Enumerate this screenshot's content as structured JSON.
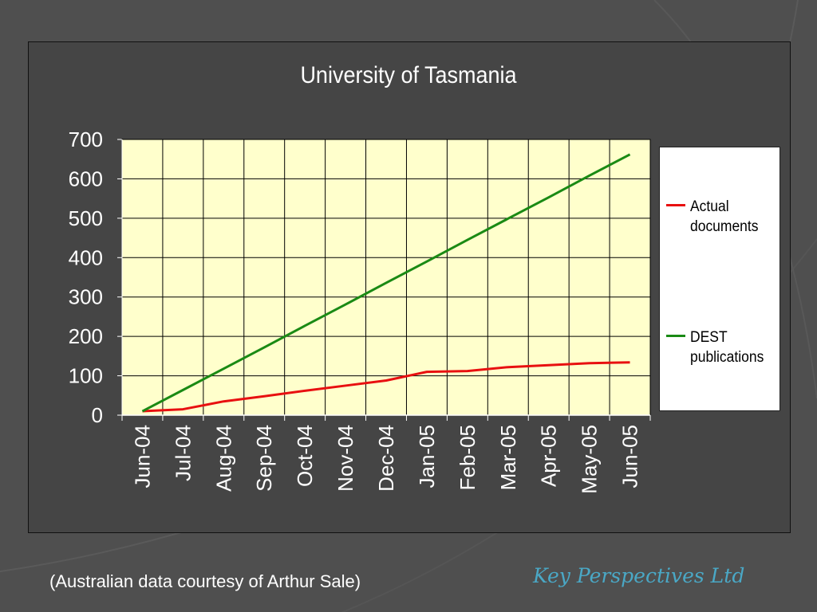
{
  "caption": "(Australian data courtesy of Arthur Sale)",
  "brand": "Key Perspectives Ltd",
  "colors": {
    "plot_bg": "#ffffcc",
    "frame_bg": "#454545",
    "slide_bg": "#4a4a4a",
    "actual": "#e81010",
    "dest": "#1a8a14",
    "brand": "#4aa8c6"
  },
  "chart_data": {
    "type": "line",
    "title": "University of Tasmania",
    "categories": [
      "Jun-04",
      "Jul-04",
      "Aug-04",
      "Sep-04",
      "Oct-04",
      "Nov-04",
      "Dec-04",
      "Jan-05",
      "Feb-05",
      "Mar-05",
      "Apr-05",
      "May-05",
      "Jun-05"
    ],
    "y_ticks": [
      "0",
      "100",
      "200",
      "300",
      "400",
      "500",
      "600",
      "700"
    ],
    "ylim": [
      0,
      700
    ],
    "grid": true,
    "legend_position": "right",
    "series": [
      {
        "name": "Actual documents",
        "color": "#e81010",
        "values": [
          10,
          15,
          35,
          48,
          62,
          75,
          88,
          110,
          112,
          122,
          127,
          132,
          134
        ]
      },
      {
        "name": "DEST publications",
        "color": "#1a8a14",
        "values": [
          10,
          64,
          118,
          172,
          227,
          281,
          336,
          390,
          445,
          499,
          553,
          608,
          662
        ]
      }
    ]
  }
}
